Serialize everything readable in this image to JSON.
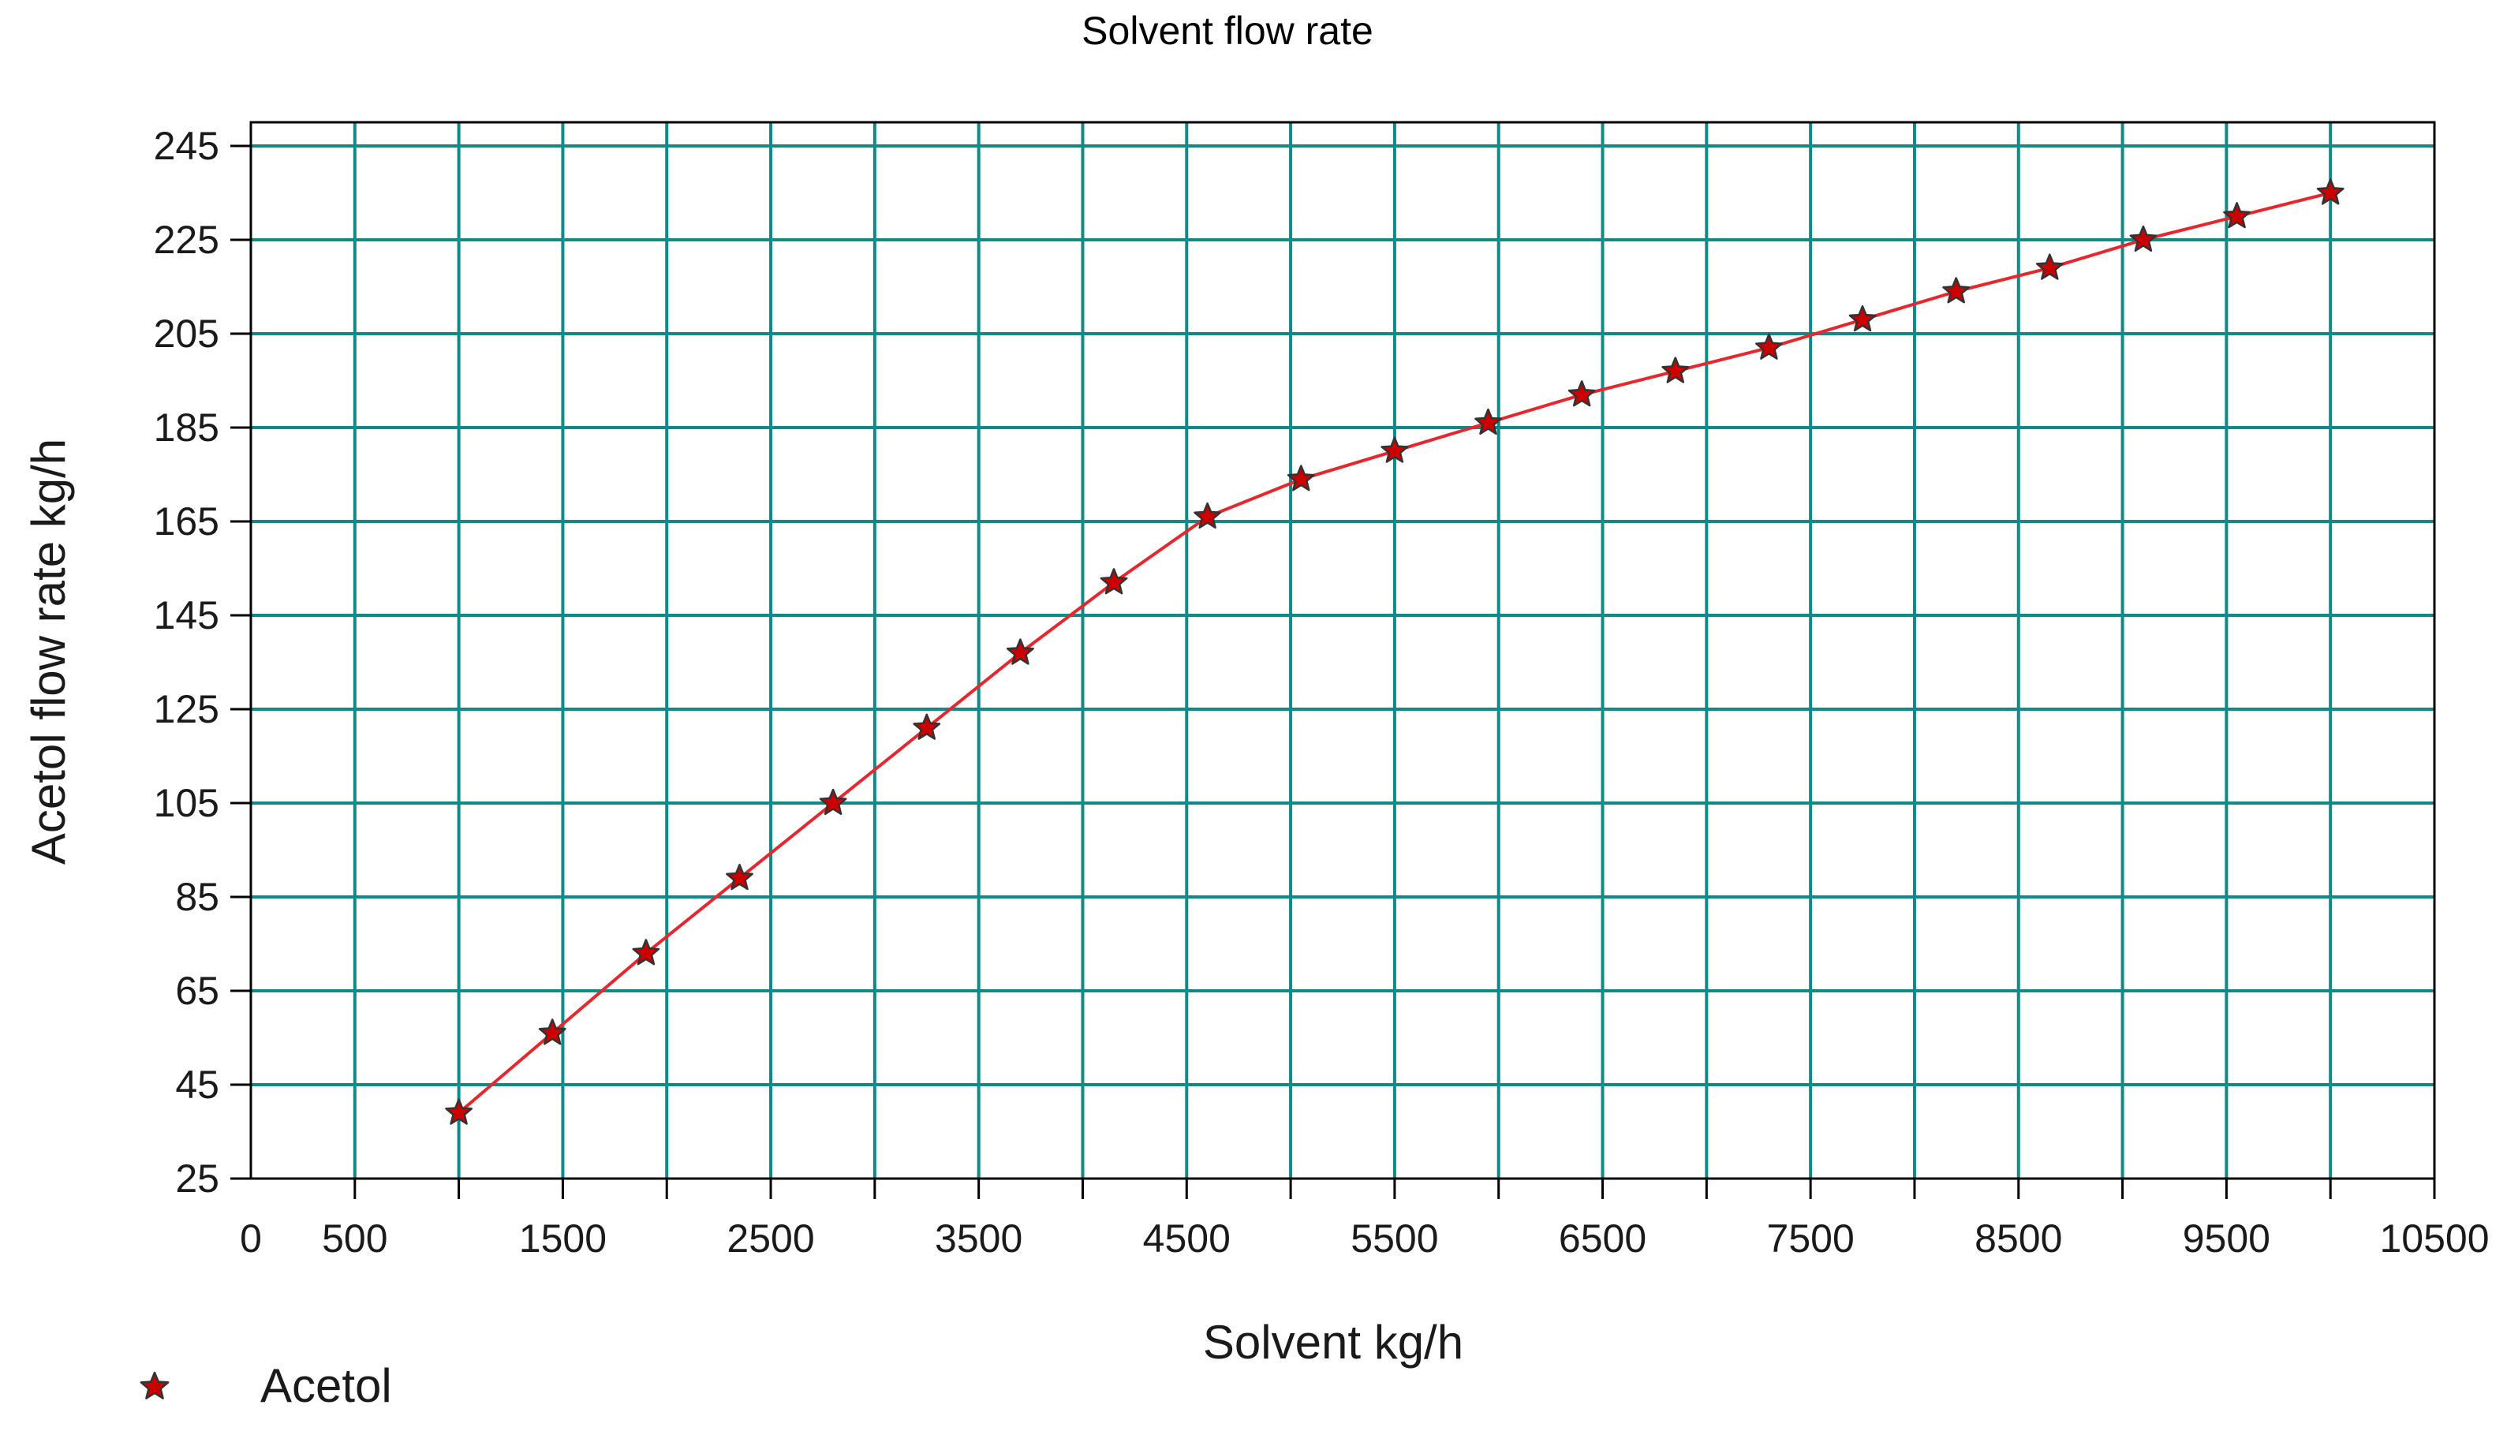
{
  "chart_data": {
    "type": "line",
    "title": "Solvent flow rate",
    "xlabel": "Solvent  kg/h",
    "ylabel": "Acetol flow rate  kg/h",
    "xlim": [
      0,
      10500
    ],
    "ylim": [
      25,
      245
    ],
    "x_ticks": [
      0,
      500,
      1500,
      2500,
      3500,
      4500,
      5500,
      6500,
      7500,
      8500,
      9500,
      10500
    ],
    "x_tick_labels": [
      "0",
      "500",
      "1500",
      "2500",
      "3500",
      "4500",
      "5500",
      "6500",
      "7500",
      "8500",
      "9500",
      "10500"
    ],
    "x_grid": [
      500,
      1000,
      1500,
      2000,
      2500,
      3000,
      3500,
      4000,
      4500,
      5000,
      5500,
      6000,
      6500,
      7000,
      7500,
      8000,
      8500,
      9000,
      9500,
      10000
    ],
    "y_ticks": [
      25,
      45,
      65,
      85,
      105,
      125,
      145,
      165,
      185,
      205,
      225,
      245
    ],
    "y_tick_labels": [
      "25",
      "45",
      "65",
      "85",
      "105",
      "125",
      "145",
      "165",
      "185",
      "205",
      "225",
      "245"
    ],
    "grid": true,
    "grid_color": "#108a86",
    "line_color": "#e8262e",
    "marker_color": "#cc0000",
    "marker": "star",
    "legend_position": "bottom-left",
    "series": [
      {
        "name": "Acetol",
        "x": [
          1000,
          1450,
          1900,
          2350,
          2800,
          3250,
          3700,
          4150,
          4600,
          5050,
          5500,
          5950,
          6400,
          6850,
          7300,
          7750,
          8200,
          8650,
          9100,
          9550,
          10000
        ],
        "y": [
          39,
          56,
          73,
          89,
          105,
          121,
          137,
          152,
          166,
          174,
          180,
          186,
          192,
          197,
          202,
          208,
          214,
          219,
          225,
          230,
          235
        ]
      }
    ]
  }
}
